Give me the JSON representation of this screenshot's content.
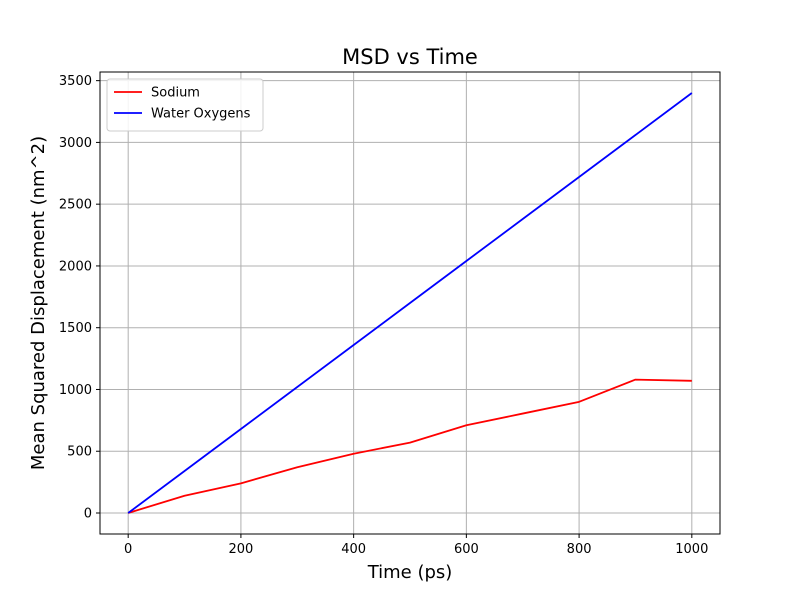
{
  "chart_data": {
    "type": "line",
    "title": "MSD vs Time",
    "xlabel": "Time (ps)",
    "ylabel": "Mean Squared Displacement (nm^2)",
    "xlim": [
      -50,
      1050
    ],
    "ylim": [
      -170,
      3570
    ],
    "xticks": [
      0,
      200,
      400,
      600,
      800,
      1000
    ],
    "yticks": [
      0,
      500,
      1000,
      1500,
      2000,
      2500,
      3000,
      3500
    ],
    "grid": true,
    "legend_position": "top-left",
    "series": [
      {
        "name": "Sodium",
        "color": "#ff0000",
        "x": [
          0,
          100,
          200,
          300,
          400,
          500,
          600,
          700,
          800,
          900,
          1000
        ],
        "y": [
          0,
          140,
          240,
          370,
          480,
          570,
          710,
          805,
          900,
          1080,
          1070
        ]
      },
      {
        "name": "Water Oxygens",
        "color": "#0000ff",
        "x": [
          0,
          100,
          200,
          300,
          400,
          500,
          600,
          700,
          800,
          900,
          1000
        ],
        "y": [
          0,
          340,
          680,
          1020,
          1360,
          1700,
          2040,
          2380,
          2720,
          3060,
          3400
        ]
      }
    ]
  }
}
